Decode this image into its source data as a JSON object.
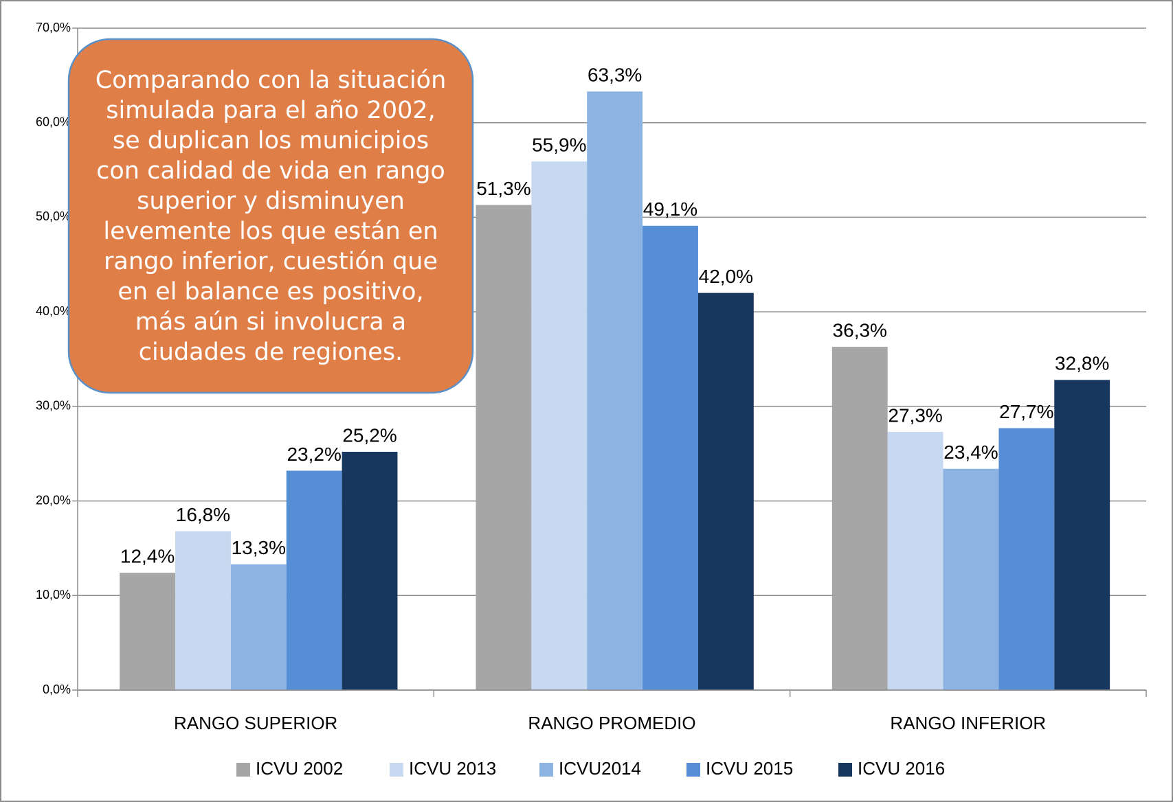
{
  "chart_data": {
    "type": "bar",
    "annotation": "Comparando con la situación simulada para el año 2002, se duplican los municipios con calidad de vida en rango superior y disminuyen levemente los que están en rango inferior, cuestión que en el balance es positivo, más aún si involucra a ciudades de regiones.",
    "categories": [
      "RANGO SUPERIOR",
      "RANGO PROMEDIO",
      "RANGO INFERIOR"
    ],
    "series": [
      {
        "name": "ICVU 2002",
        "color": "#a6a6a6",
        "values": [
          12.4,
          51.3,
          36.3
        ],
        "value_labels": [
          "12,4%",
          "51,3%",
          "36,3%"
        ]
      },
      {
        "name": "ICVU 2013",
        "color": "#c6d9f1",
        "values": [
          16.8,
          55.9,
          27.3
        ],
        "value_labels": [
          "16,8%",
          "55,9%",
          "27,3%"
        ]
      },
      {
        "name": "ICVU2014",
        "color": "#8db3e2",
        "values": [
          13.3,
          63.3,
          23.4
        ],
        "value_labels": [
          "13,3%",
          "63,3%",
          "23,4%"
        ]
      },
      {
        "name": "ICVU 2015",
        "color": "#558ed5",
        "values": [
          23.2,
          49.1,
          27.7
        ],
        "value_labels": [
          "23,2%",
          "49,1%",
          "27,7%"
        ]
      },
      {
        "name": "ICVU 2016",
        "color": "#17375e",
        "values": [
          25.2,
          42.0,
          32.8
        ],
        "value_labels": [
          "25,2%",
          "42,0%",
          "32,8%"
        ]
      }
    ],
    "ylim": [
      0,
      70
    ],
    "yticks": [
      {
        "value": 0,
        "label": "0,0%"
      },
      {
        "value": 10,
        "label": "10,0%"
      },
      {
        "value": 20,
        "label": "20,0%"
      },
      {
        "value": 30,
        "label": "30,0%"
      },
      {
        "value": 40,
        "label": "40,0%"
      },
      {
        "value": 50,
        "label": "50,0%"
      },
      {
        "value": 60,
        "label": "60,0%"
      },
      {
        "value": 70,
        "label": "70,0%"
      }
    ],
    "grid": true,
    "legend": "bottom"
  }
}
